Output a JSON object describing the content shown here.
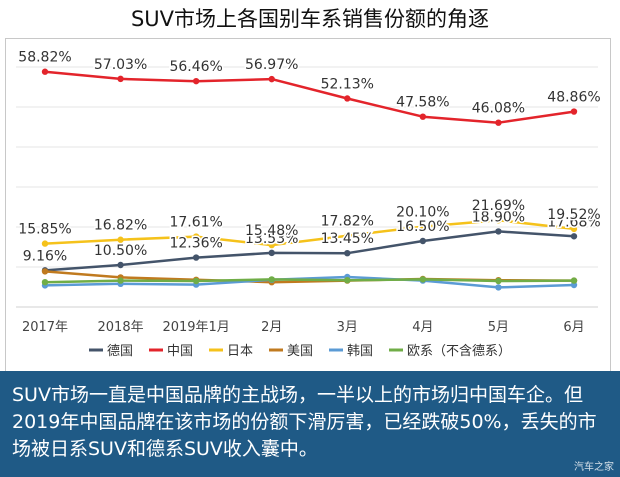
{
  "title": "SUV市场上各国别车系销售份额的角逐",
  "caption": "SUV市场一直是中国品牌的主战场，一半以上的市场归中国车企。但2019年中国品牌在该市场的份额下滑厉害，已经跌破50%，丢失的市场被日系SUV和德系SUV收入囊中。",
  "watermark": "汽车之家",
  "chart_data": {
    "type": "line",
    "title": "",
    "xlabel": "",
    "ylabel": "",
    "grid": true,
    "legend_position": "bottom",
    "categories": [
      "2017年",
      "2018年",
      "2019年1月",
      "2月",
      "3月",
      "4月",
      "5月",
      "6月"
    ],
    "ylim": [
      0,
      65
    ],
    "series": [
      {
        "name": "德国",
        "color": "#44546a",
        "values": [
          9.16,
          10.5,
          12.36,
          13.53,
          13.45,
          16.5,
          18.9,
          17.68
        ],
        "labels": [
          "9.16%",
          "10.50%",
          "12.36%",
          "13.53%",
          "13.45%",
          "16.50%",
          "18.90%",
          "17.68%"
        ]
      },
      {
        "name": "中国",
        "color": "#e3242b",
        "values": [
          58.82,
          57.03,
          56.46,
          56.97,
          52.13,
          47.58,
          46.08,
          48.86
        ],
        "labels": [
          "58.82%",
          "57.03%",
          "56.46%",
          "56.97%",
          "52.13%",
          "47.58%",
          "46.08%",
          "48.86%"
        ]
      },
      {
        "name": "日本",
        "color": "#f5c21b",
        "values": [
          15.85,
          16.82,
          17.61,
          15.48,
          17.82,
          20.1,
          21.69,
          19.52
        ],
        "labels": [
          "15.85%",
          "16.82%",
          "17.61%",
          "15.48%",
          "17.82%",
          "20.10%",
          "21.69%",
          "19.52%"
        ]
      },
      {
        "name": "美国",
        "color": "#c07a1f",
        "values": [
          8.9,
          7.4,
          6.8,
          6.2,
          6.6,
          7.0,
          6.7,
          6.6
        ],
        "labels": []
      },
      {
        "name": "韩国",
        "color": "#5b9bd5",
        "values": [
          5.4,
          5.8,
          5.6,
          6.8,
          7.5,
          6.6,
          4.9,
          5.5
        ],
        "labels": []
      },
      {
        "name": "欧系（不含德系）",
        "color": "#70ad47",
        "values": [
          6.2,
          6.6,
          6.5,
          6.9,
          6.7,
          6.9,
          6.5,
          6.6
        ],
        "labels": []
      }
    ]
  }
}
